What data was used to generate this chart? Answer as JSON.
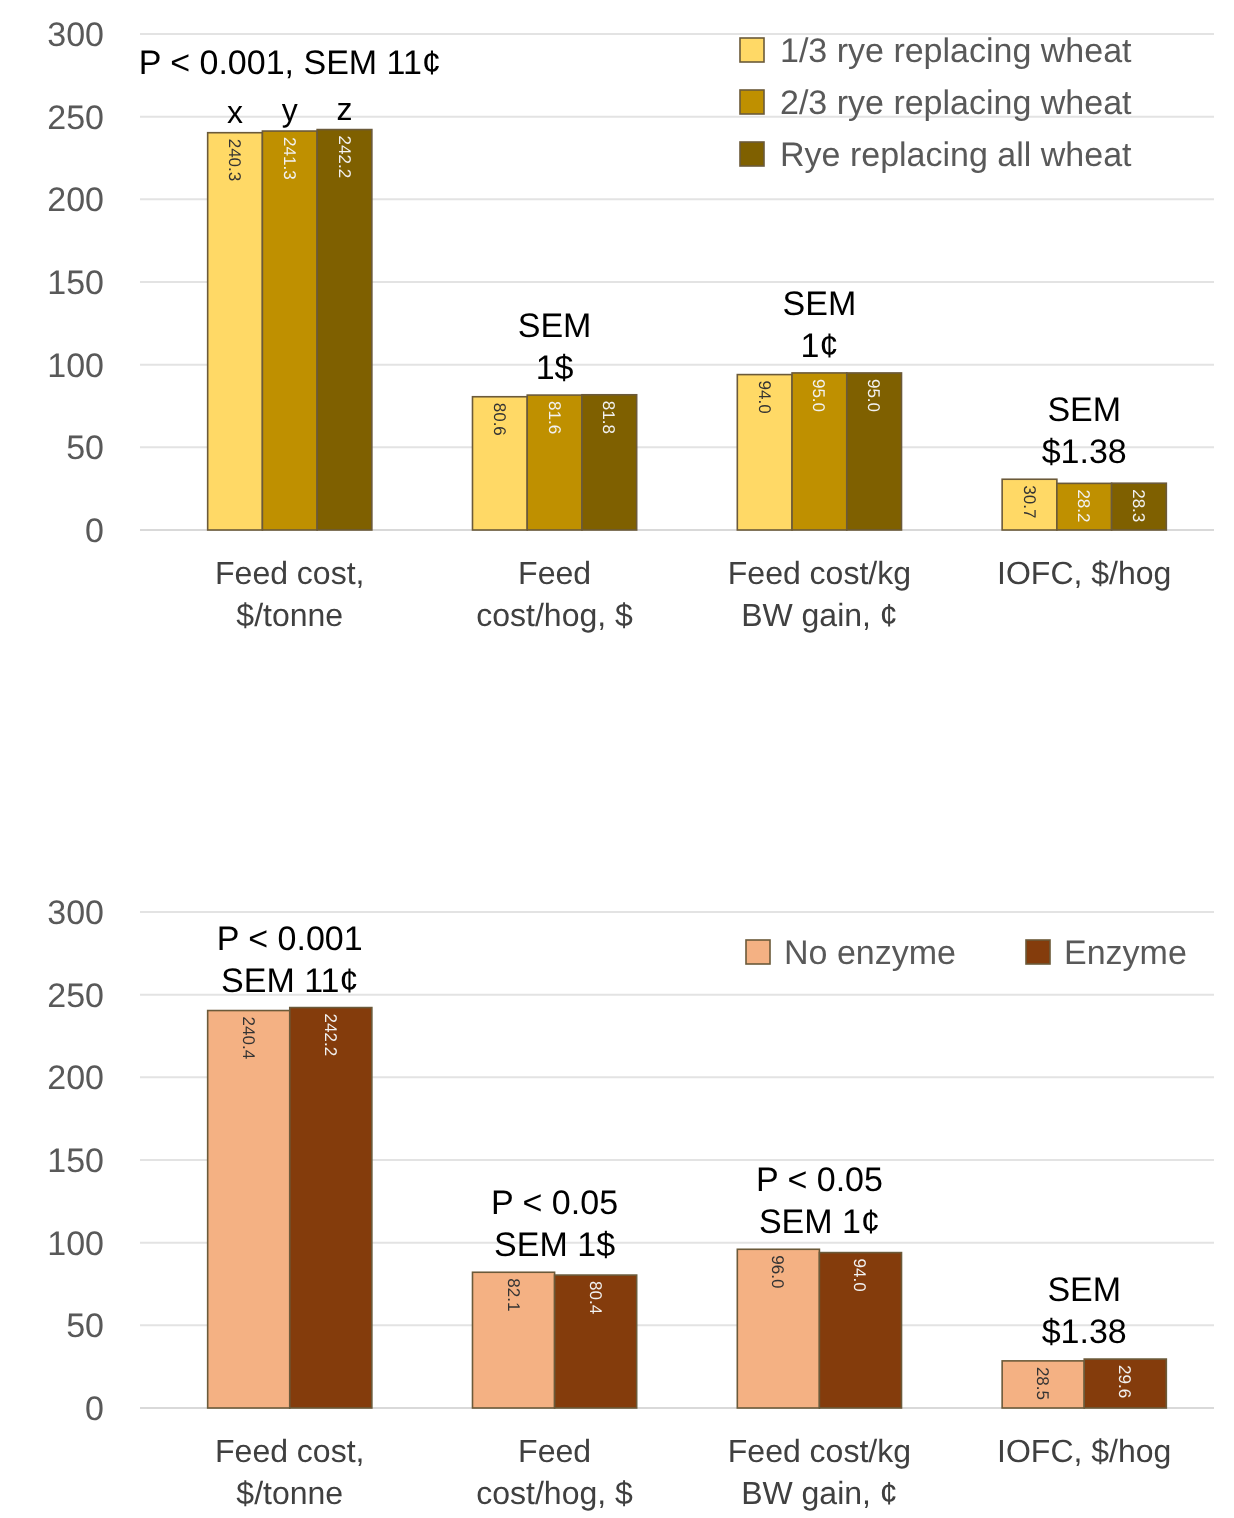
{
  "chart_data": [
    {
      "type": "bar",
      "categories": [
        "Feed cost, $/tonne",
        "Feed cost/hog, $",
        "Feed cost/kg BW gain, ¢",
        "IOFC, $/hog"
      ],
      "series": [
        {
          "name": "1/3 rye replacing wheat",
          "color": "#ffd966",
          "values": [
            240.3,
            80.6,
            94.0,
            30.7
          ],
          "value_labels": [
            "240.3",
            "80.6",
            "94.0",
            "30.7"
          ]
        },
        {
          "name": "2/3 rye replacing wheat",
          "color": "#bf9000",
          "values": [
            241.3,
            81.6,
            95.0,
            28.2
          ],
          "value_labels": [
            "241.3",
            "81.6",
            "95.0",
            "28.2"
          ]
        },
        {
          "name": "Rye replacing all wheat",
          "color": "#7f6000",
          "values": [
            242.2,
            81.8,
            95.0,
            28.3
          ],
          "value_labels": [
            "242.2",
            "81.8",
            "95.0",
            "28.3"
          ]
        }
      ],
      "ylim": [
        0,
        300
      ],
      "yticks": [
        0,
        50,
        100,
        150,
        200,
        250,
        300
      ],
      "grid": "y",
      "legend": "top right",
      "annotations": [
        "P < 0.001, SEM 11¢",
        {
          "text": "x",
          "x": "Feed cost, $/tonne",
          "y": 240.3
        },
        {
          "text": "y",
          "x": "Feed cost, $/tonne",
          "y": 241.3
        },
        {
          "text": "z",
          "x": "Feed cost, $/tonne",
          "y": 242.2
        },
        "SEM\n1$",
        "SEM\n1¢",
        "SEM\n$1.38"
      ]
    },
    {
      "type": "bar",
      "categories": [
        "Feed cost, $/tonne",
        "Feed cost/hog, $",
        "Feed cost/kg BW gain, ¢",
        "IOFC, $/hog"
      ],
      "series": [
        {
          "name": "No enzyme",
          "color": "#f4b183",
          "values": [
            240.4,
            82.1,
            96.0,
            28.5
          ],
          "value_labels": [
            "240.4",
            "82.1",
            "96.0",
            "28.5"
          ]
        },
        {
          "name": "Enzyme",
          "color": "#843c0c",
          "values": [
            242.2,
            80.4,
            94.0,
            29.6
          ],
          "value_labels": [
            "242.2",
            "80.4",
            "94.0",
            "29.6"
          ]
        }
      ],
      "ylim": [
        0,
        300
      ],
      "yticks": [
        0,
        50,
        100,
        150,
        200,
        250,
        300
      ],
      "grid": "y",
      "legend": "top right",
      "annotations": [
        "P < 0.001\nSEM 11¢",
        "P < 0.05\nSEM 1$",
        "P < 0.05\nSEM 1¢",
        "SEM\n$1.38"
      ]
    }
  ]
}
